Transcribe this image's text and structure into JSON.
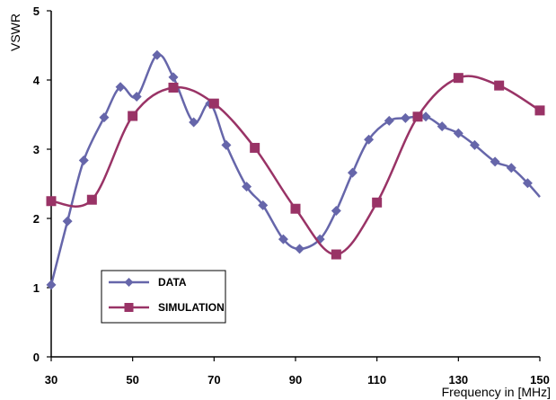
{
  "chart_data": {
    "type": "line",
    "title": "",
    "xlabel": "Frequency in [MHz]",
    "ylabel": "VSWR",
    "xlim": [
      30,
      150
    ],
    "ylim": [
      0,
      5
    ],
    "xticks": [
      30,
      50,
      70,
      90,
      110,
      130,
      150
    ],
    "yticks": [
      0,
      1,
      2,
      3,
      4,
      5
    ],
    "grid": false,
    "legend": "bottom-left",
    "series": [
      {
        "name": "DATA",
        "color": "#6666aa",
        "marker": "diamond",
        "smooth": true,
        "x": [
          30,
          34,
          38,
          43,
          47,
          51,
          56,
          60,
          65,
          69,
          73,
          78,
          82,
          87,
          91,
          96,
          100,
          104,
          108,
          113,
          117,
          122,
          126,
          130,
          134,
          139,
          143,
          147
        ],
        "y": [
          1.04,
          1.96,
          2.84,
          3.46,
          3.9,
          3.76,
          4.36,
          4.04,
          3.39,
          3.66,
          3.06,
          2.46,
          2.19,
          1.7,
          1.56,
          1.7,
          2.11,
          2.66,
          3.14,
          3.41,
          3.45,
          3.47,
          3.33,
          3.23,
          3.06,
          2.82,
          2.73,
          2.51
        ],
        "extend_to": [
          150,
          2.31
        ]
      },
      {
        "name": "SIMULATION",
        "color": "#993366",
        "marker": "square",
        "smooth": true,
        "x": [
          30,
          40,
          50,
          60,
          70,
          80,
          90,
          100,
          110,
          120,
          130,
          140,
          150
        ],
        "y": [
          2.25,
          2.27,
          3.48,
          3.89,
          3.66,
          3.02,
          2.14,
          1.48,
          2.23,
          3.47,
          4.03,
          3.92,
          3.56
        ]
      }
    ]
  }
}
